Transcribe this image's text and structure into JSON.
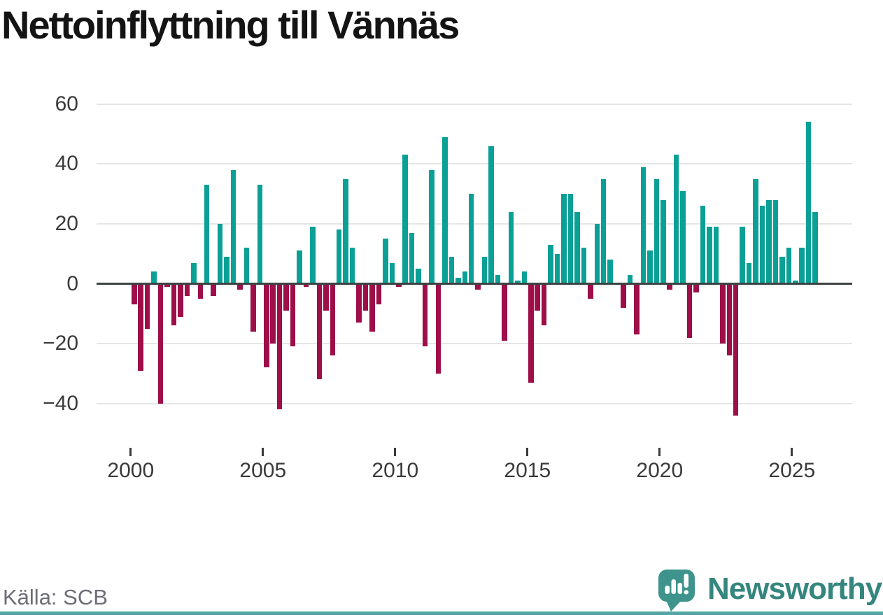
{
  "header": {
    "title": "Nettoinflyttning till Vännäs"
  },
  "footer": {
    "source": "Källa: SCB",
    "brand": {
      "wordmark": "Newsworthy",
      "icon": "newsworthy-speech-bubble-bar-chart-icon"
    }
  },
  "colors": {
    "positive": "#0aa096",
    "negative": "#9e0e48",
    "axis": "#3d4242",
    "grid": "#e4e6e6",
    "tick": "#3a3a3a",
    "tick_label": "#3a3a3a",
    "title_text": "#141414",
    "source_text": "#6d6d76",
    "brand_teal": "#35867e",
    "brand_icon_teal": "#3e948c",
    "footer_strip": "#52a5a1",
    "background": "#ffffff"
  },
  "chart_data": {
    "type": "bar",
    "title": "Nettoinflyttning till Vännäs",
    "frequency": "quarterly",
    "start_period": "2000Q1",
    "end_period": "2025Q4",
    "series_note": "Net migration per quarter; positive bars teal, negative bars crimson",
    "values": [
      -7,
      -29,
      -15,
      4,
      -40,
      -1,
      -14,
      -11,
      -4,
      7,
      -5,
      33,
      -4,
      20,
      9,
      38,
      -2,
      12,
      -16,
      33,
      -28,
      -20,
      -42,
      -9,
      -21,
      11,
      -1,
      19,
      -32,
      -9,
      -24,
      18,
      35,
      12,
      -13,
      -9,
      -16,
      -7,
      15,
      7,
      -1,
      43,
      17,
      5,
      -21,
      38,
      -30,
      49,
      9,
      2,
      4,
      30,
      -2,
      9,
      46,
      3,
      -19,
      24,
      1,
      4,
      -33,
      -9,
      -14,
      13,
      10,
      30,
      30,
      24,
      12,
      -5,
      20,
      35,
      8,
      0,
      -8,
      3,
      -17,
      39,
      11,
      35,
      28,
      -2,
      43,
      31,
      -18,
      -3,
      26,
      19,
      19,
      -20,
      -24,
      -44,
      19,
      7,
      35,
      26,
      28,
      28,
      9,
      12,
      1,
      12,
      54,
      24
    ],
    "xlabel": "",
    "ylabel": "",
    "xtick_labels": [
      "2000",
      "2005",
      "2010",
      "2015",
      "2020",
      "2025"
    ],
    "xtick_spacing_quarters": 20,
    "yticks": [
      60,
      40,
      20,
      0,
      -20,
      -40
    ],
    "ytick_labels": [
      "60",
      "40",
      "20",
      "0",
      "−20",
      "−40"
    ],
    "ylim": [
      -50,
      62
    ],
    "grid": "horizontal",
    "legend": "none"
  }
}
